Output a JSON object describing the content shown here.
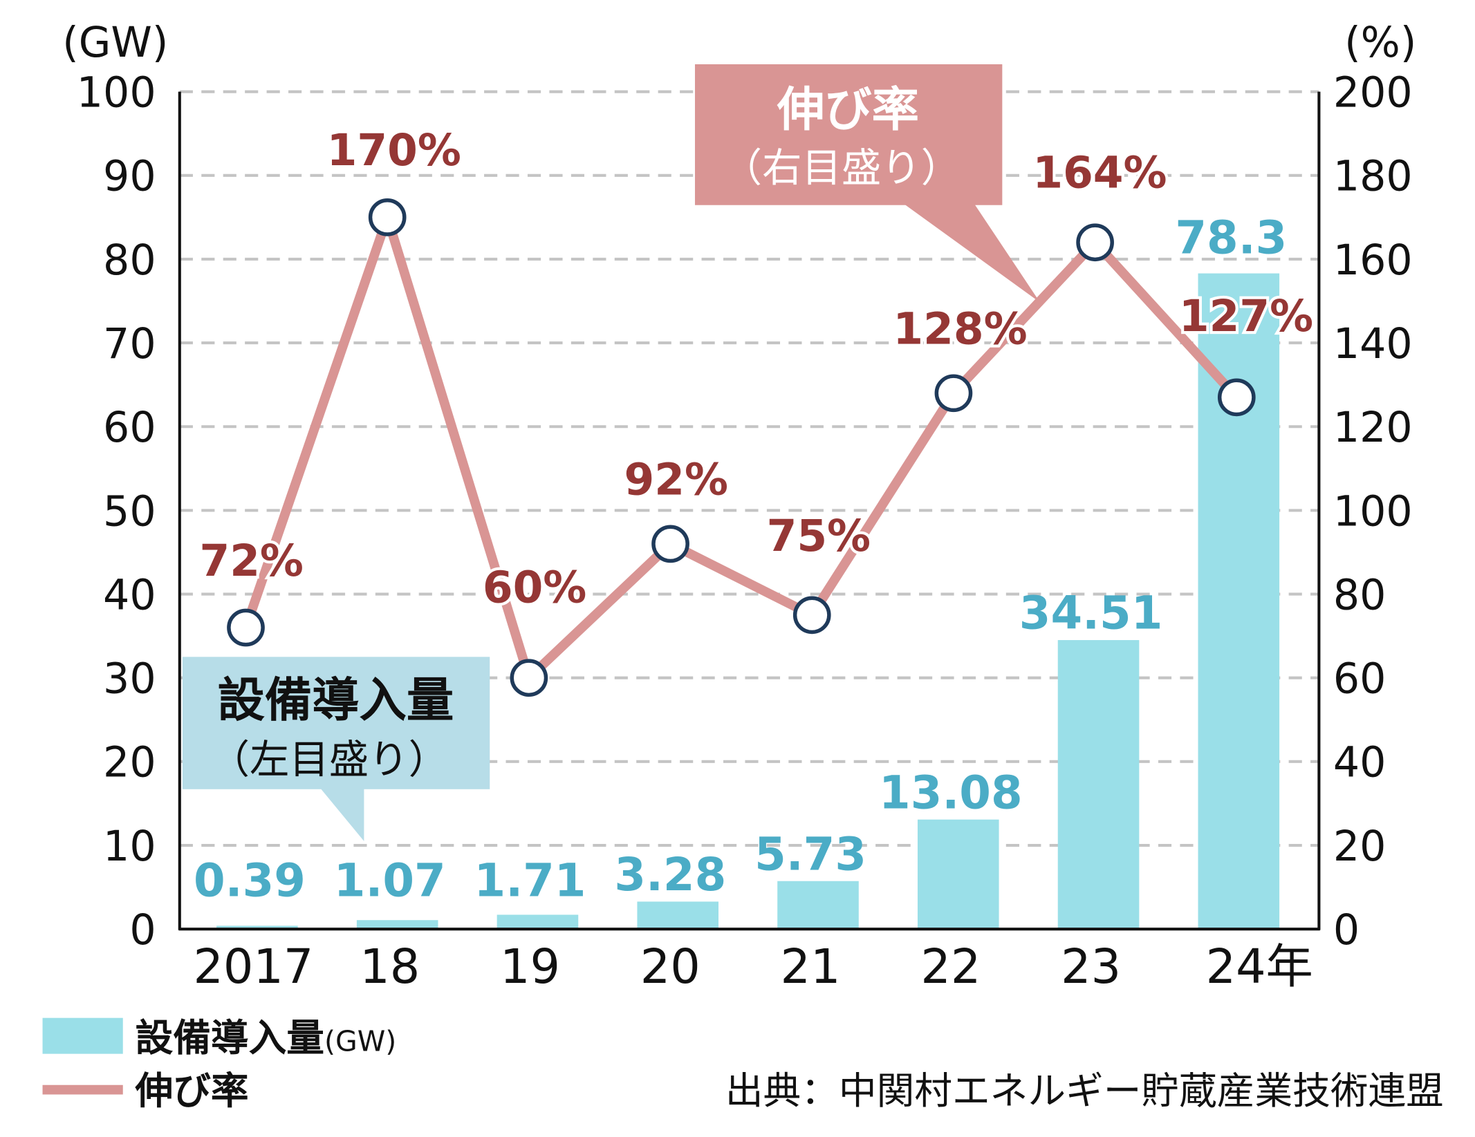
{
  "chart_data": {
    "type": "bar+line",
    "categories": [
      "2017",
      "18",
      "19",
      "20",
      "21",
      "22",
      "23",
      "24年"
    ],
    "left_axis": {
      "unit": "(GW)",
      "ylim": [
        0,
        100
      ],
      "ticks": [
        0,
        10,
        20,
        30,
        40,
        50,
        60,
        70,
        80,
        90,
        100
      ]
    },
    "right_axis": {
      "unit": "(%)",
      "ylim": [
        0,
        200
      ],
      "ticks": [
        0,
        20,
        40,
        60,
        80,
        100,
        120,
        140,
        160,
        180,
        200
      ]
    },
    "grid": true,
    "series": [
      {
        "name": "設備導入量",
        "legend_unit": "(GW)",
        "type": "bar",
        "axis": "left",
        "color": "#9adfe8",
        "label_color": "#4bacc6",
        "values": [
          0.39,
          1.07,
          1.71,
          3.28,
          5.73,
          13.08,
          34.51,
          78.3
        ],
        "labels": [
          "0.39",
          "1.07",
          "1.71",
          "3.28",
          "5.73",
          "13.08",
          "34.51",
          "78.3"
        ]
      },
      {
        "name": "伸び率",
        "type": "line",
        "axis": "right",
        "color": "#d99594",
        "label_color": "#953735",
        "values": [
          72,
          170,
          60,
          92,
          75,
          128,
          164,
          127
        ],
        "labels": [
          "72%",
          "170%",
          "60%",
          "92%",
          "75%",
          "128%",
          "164%",
          "127%"
        ]
      }
    ],
    "annotations": {
      "line_callout": {
        "title": "伸び率",
        "subtitle": "（右目盛り）",
        "color": "#d99594"
      },
      "bar_callout": {
        "title": "設備導入量",
        "subtitle": "（左目盛り）",
        "color": "#b7dde8"
      }
    },
    "legend_placement": "bottom-left",
    "source": "出典：中関村エネルギー貯蔵産業技術連盟"
  }
}
